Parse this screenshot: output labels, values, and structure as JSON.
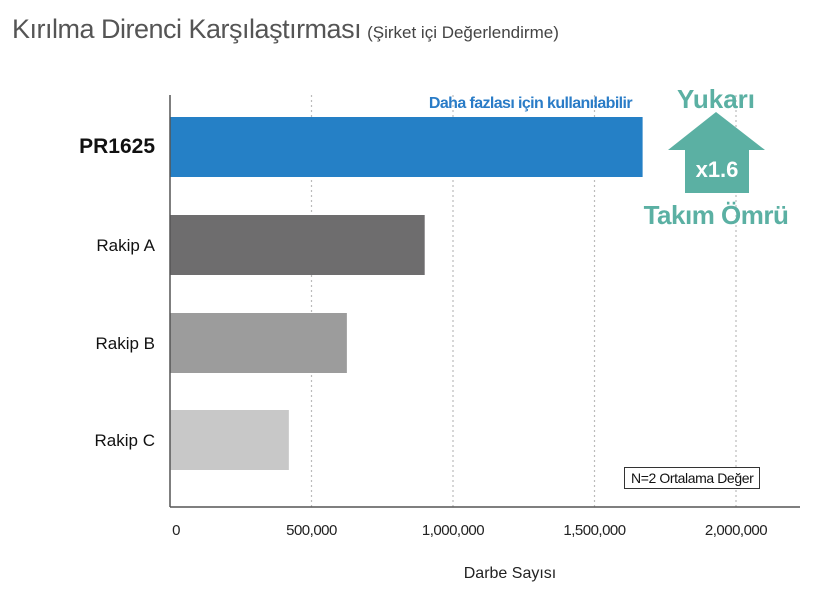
{
  "title": "Kırılma Direnci Karşılaştırması",
  "subtitle": "(Şirket içi Değerlendirme)",
  "chart_data": {
    "type": "bar",
    "orientation": "horizontal",
    "categories": [
      "PR1625",
      "Rakip A",
      "Rakip B",
      "Rakip C"
    ],
    "values": [
      1670000,
      900000,
      625000,
      420000
    ],
    "colors": [
      "#2580c6",
      "#6e6d6e",
      "#9c9c9c",
      "#c8c8c8"
    ],
    "xlabel": "Darbe Sayısı",
    "xlim": [
      0,
      2200000
    ],
    "xticks": [
      0,
      500000,
      1000000,
      1500000,
      2000000
    ],
    "xtick_labels": [
      "0",
      "500,000",
      "1,000,000",
      "1,500,000",
      "2,000,000"
    ],
    "grid": "vertical dotted",
    "annotations": {
      "bar_note": "Daha fazlası için kullanılabilir",
      "arrow_top": "Yukarı",
      "arrow_value": "x1.6",
      "arrow_bottom": "Takım Ömrü",
      "sample_note": "N=2 Ortalama Değer"
    },
    "accent_color": "#2a7cc7",
    "arrow_color": "#5bb0a3"
  }
}
